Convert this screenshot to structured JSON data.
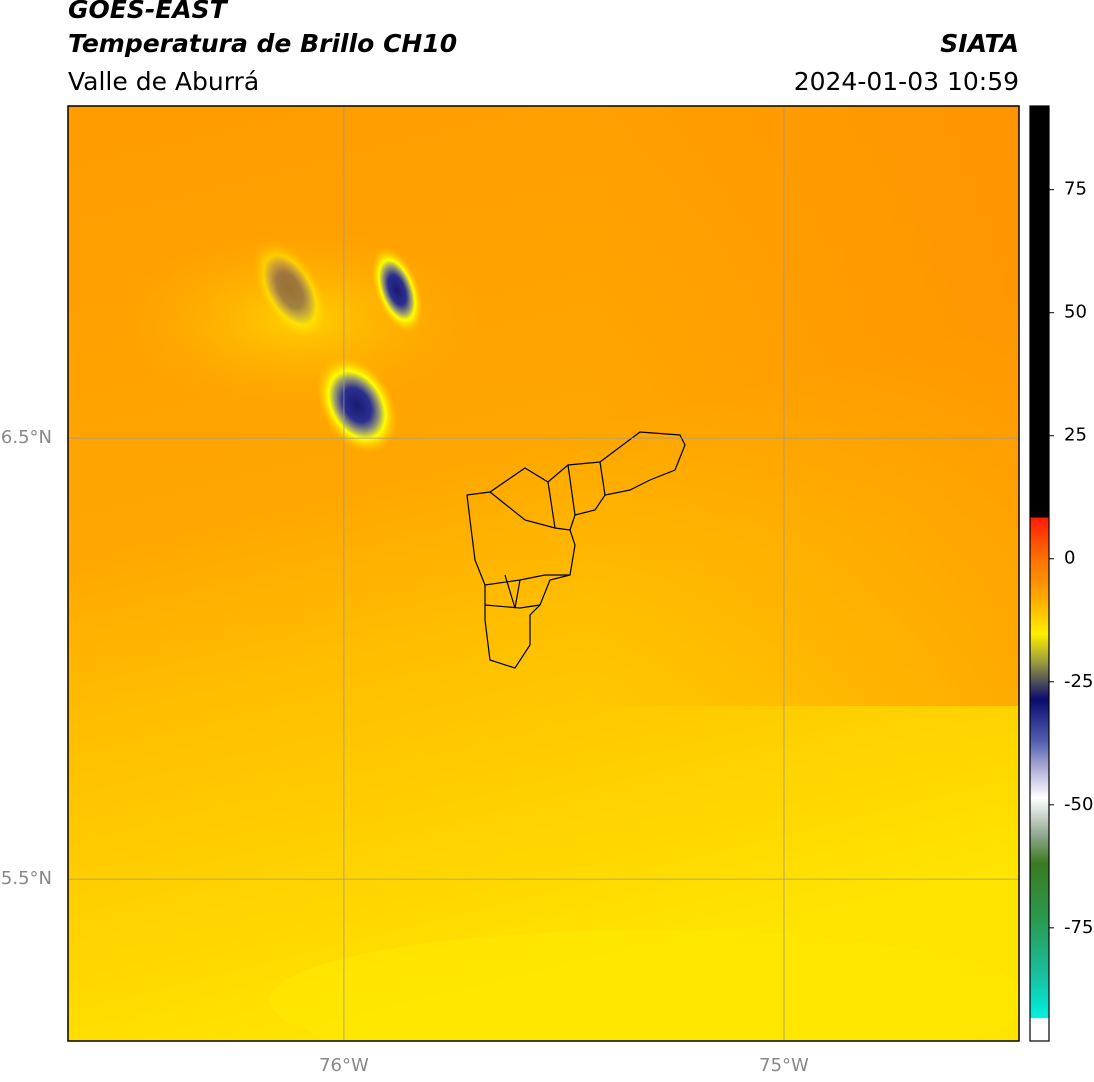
{
  "header": {
    "title": "GOES-EAST",
    "subtitle": "Temperatura de Brillo CH10",
    "region": "Valle de Aburrá",
    "source": "SIATA",
    "datetime": "2024-01-03 10:59"
  },
  "map": {
    "xlim": [
      -76.627,
      -74.466
    ],
    "ylim": [
      5.133,
      7.253
    ],
    "xticks": [
      {
        "value": -76,
        "label": "76°W"
      },
      {
        "value": -75,
        "label": "75°W"
      }
    ],
    "yticks": [
      {
        "value": 6.5,
        "label": "6.5°N"
      },
      {
        "value": 5.5,
        "label": "5.5°N"
      }
    ],
    "grid": true
  },
  "colorbar": {
    "lim": [
      -98,
      92
    ],
    "ticks": [
      75,
      50,
      25,
      0,
      -25,
      -50,
      -75
    ]
  }
}
